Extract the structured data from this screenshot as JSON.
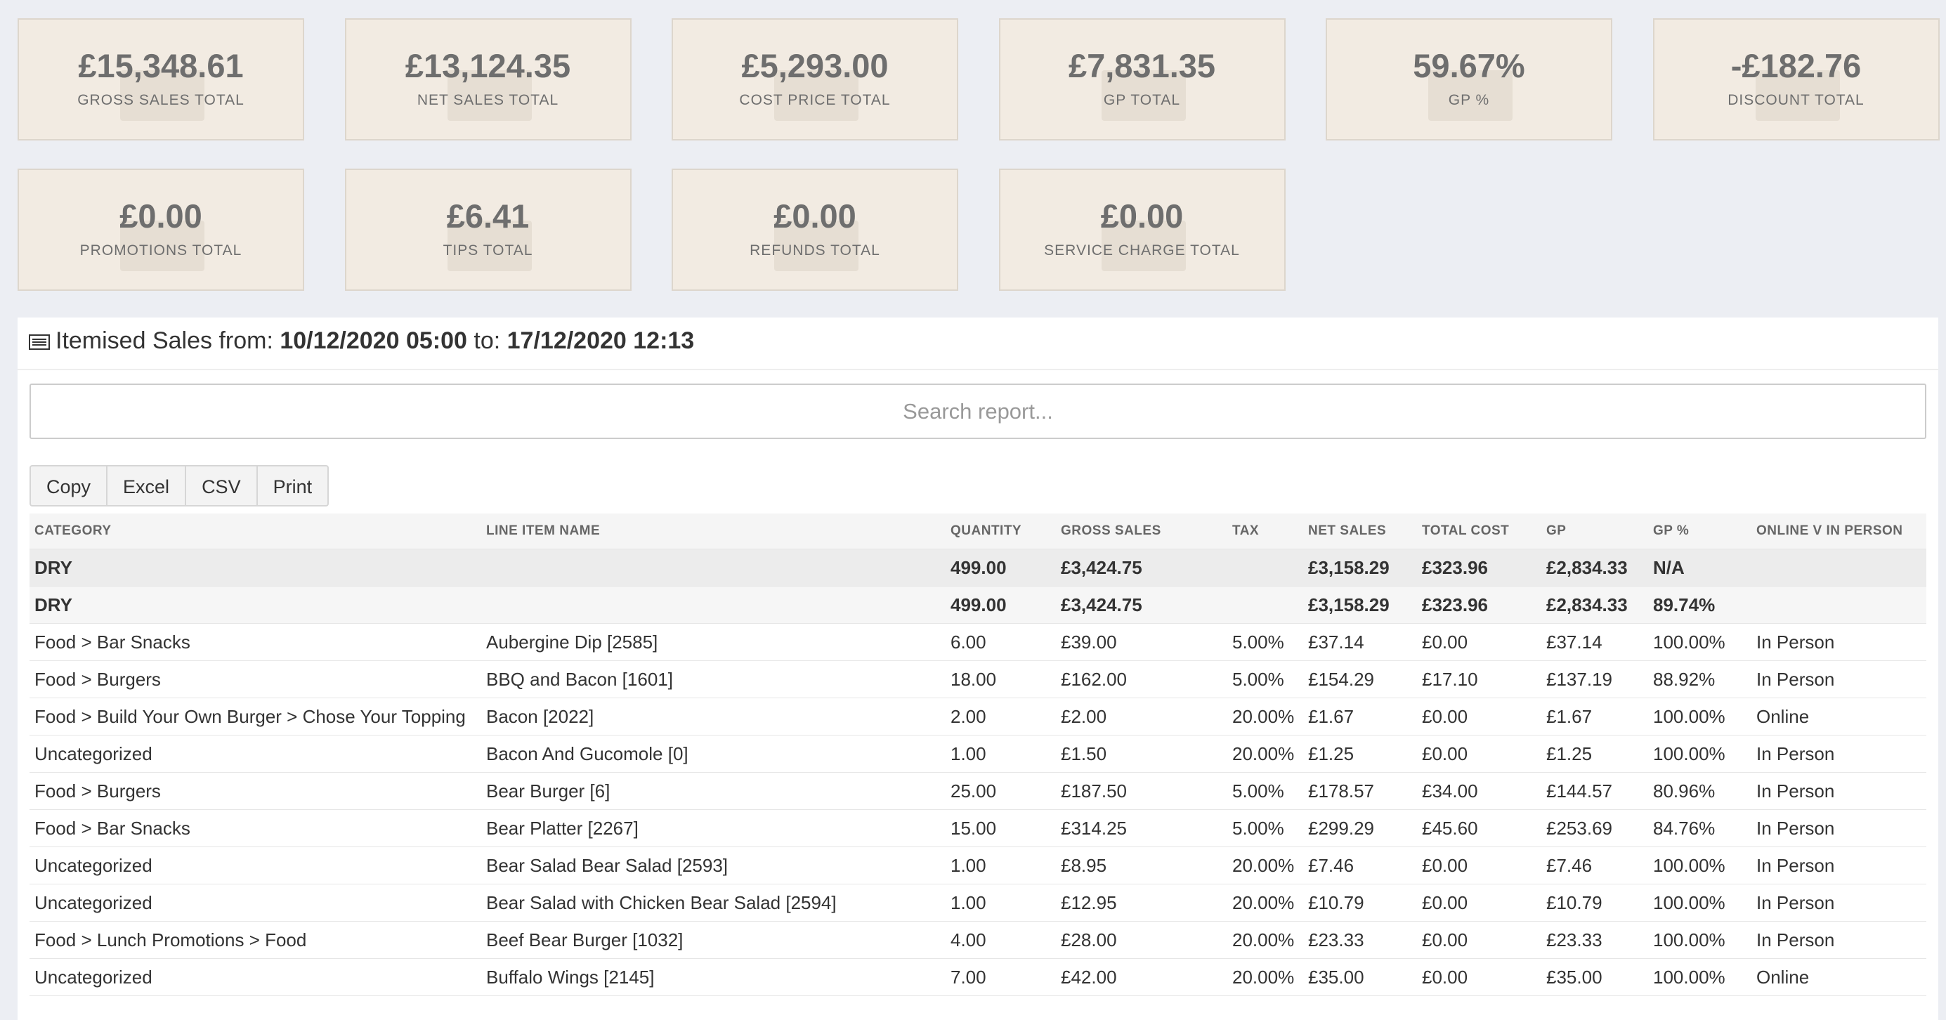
{
  "cards": [
    {
      "value": "£15,348.61",
      "label": "GROSS SALES TOTAL"
    },
    {
      "value": "£13,124.35",
      "label": "NET SALES TOTAL"
    },
    {
      "value": "£5,293.00",
      "label": "COST PRICE TOTAL"
    },
    {
      "value": "£7,831.35",
      "label": "GP TOTAL"
    },
    {
      "value": "59.67%",
      "label": "GP %"
    },
    {
      "value": "-£182.76",
      "label": "DISCOUNT TOTAL"
    },
    {
      "value": "£0.00",
      "label": "PROMOTIONS TOTAL"
    },
    {
      "value": "£6.41",
      "label": "TIPS TOTAL"
    },
    {
      "value": "£0.00",
      "label": "REFUNDS TOTAL"
    },
    {
      "value": "£0.00",
      "label": "SERVICE CHARGE TOTAL"
    }
  ],
  "report": {
    "title_prefix": "Itemised Sales from:",
    "from": "10/12/2020 05:00",
    "to_label": "to:",
    "to": "17/12/2020 12:13",
    "search_placeholder": "Search report...",
    "buttons": [
      "Copy",
      "Excel",
      "CSV",
      "Print"
    ]
  },
  "table": {
    "headers": [
      "CATEGORY",
      "LINE ITEM NAME",
      "QUANTITY",
      "GROSS SALES",
      "TAX",
      "NET SALES",
      "TOTAL COST",
      "GP",
      "GP %",
      "ONLINE V IN PERSON"
    ],
    "rows": [
      [
        "DRY",
        null,
        "499.00",
        "£3,424.75",
        null,
        "£3,158.29",
        "£323.96",
        "£2,834.33",
        "N/A",
        null
      ],
      [
        "DRY",
        null,
        "499.00",
        "£3,424.75",
        null,
        "£3,158.29",
        "£323.96",
        "£2,834.33",
        "89.74%",
        null
      ],
      [
        "Food > Bar Snacks",
        "Aubergine Dip [2585]",
        "6.00",
        "£39.00",
        "5.00%",
        "£37.14",
        "£0.00",
        "£37.14",
        "100.00%",
        "In Person"
      ],
      [
        "Food > Burgers",
        "BBQ and Bacon [1601]",
        "18.00",
        "£162.00",
        "5.00%",
        "£154.29",
        "£17.10",
        "£137.19",
        "88.92%",
        "In Person"
      ],
      [
        "Food > Build Your Own Burger > Chose Your Topping",
        "Bacon [2022]",
        "2.00",
        "£2.00",
        "20.00%",
        "£1.67",
        "£0.00",
        "£1.67",
        "100.00%",
        "Online"
      ],
      [
        "Uncategorized",
        "Bacon And Gucomole [0]",
        "1.00",
        "£1.50",
        "20.00%",
        "£1.25",
        "£0.00",
        "£1.25",
        "100.00%",
        "In Person"
      ],
      [
        "Food > Burgers",
        "Bear Burger [6]",
        "25.00",
        "£187.50",
        "5.00%",
        "£178.57",
        "£34.00",
        "£144.57",
        "80.96%",
        "In Person"
      ],
      [
        "Food > Bar Snacks",
        "Bear Platter [2267]",
        "15.00",
        "£314.25",
        "5.00%",
        "£299.29",
        "£45.60",
        "£253.69",
        "84.76%",
        "In Person"
      ],
      [
        "Uncategorized",
        "Bear Salad Bear Salad [2593]",
        "1.00",
        "£8.95",
        "20.00%",
        "£7.46",
        "£0.00",
        "£7.46",
        "100.00%",
        "In Person"
      ],
      [
        "Uncategorized",
        "Bear Salad with Chicken Bear Salad [2594]",
        "1.00",
        "£12.95",
        "20.00%",
        "£10.79",
        "£0.00",
        "£10.79",
        "100.00%",
        "In Person"
      ],
      [
        "Food > Lunch Promotions > Food",
        "Beef Bear Burger [1032]",
        "4.00",
        "£28.00",
        "20.00%",
        "£23.33",
        "£0.00",
        "£23.33",
        "100.00%",
        "In Person"
      ],
      [
        "Uncategorized",
        "Buffalo Wings [2145]",
        "7.00",
        "£42.00",
        "20.00%",
        "£35.00",
        "£0.00",
        "£35.00",
        "100.00%",
        "Online"
      ]
    ]
  }
}
